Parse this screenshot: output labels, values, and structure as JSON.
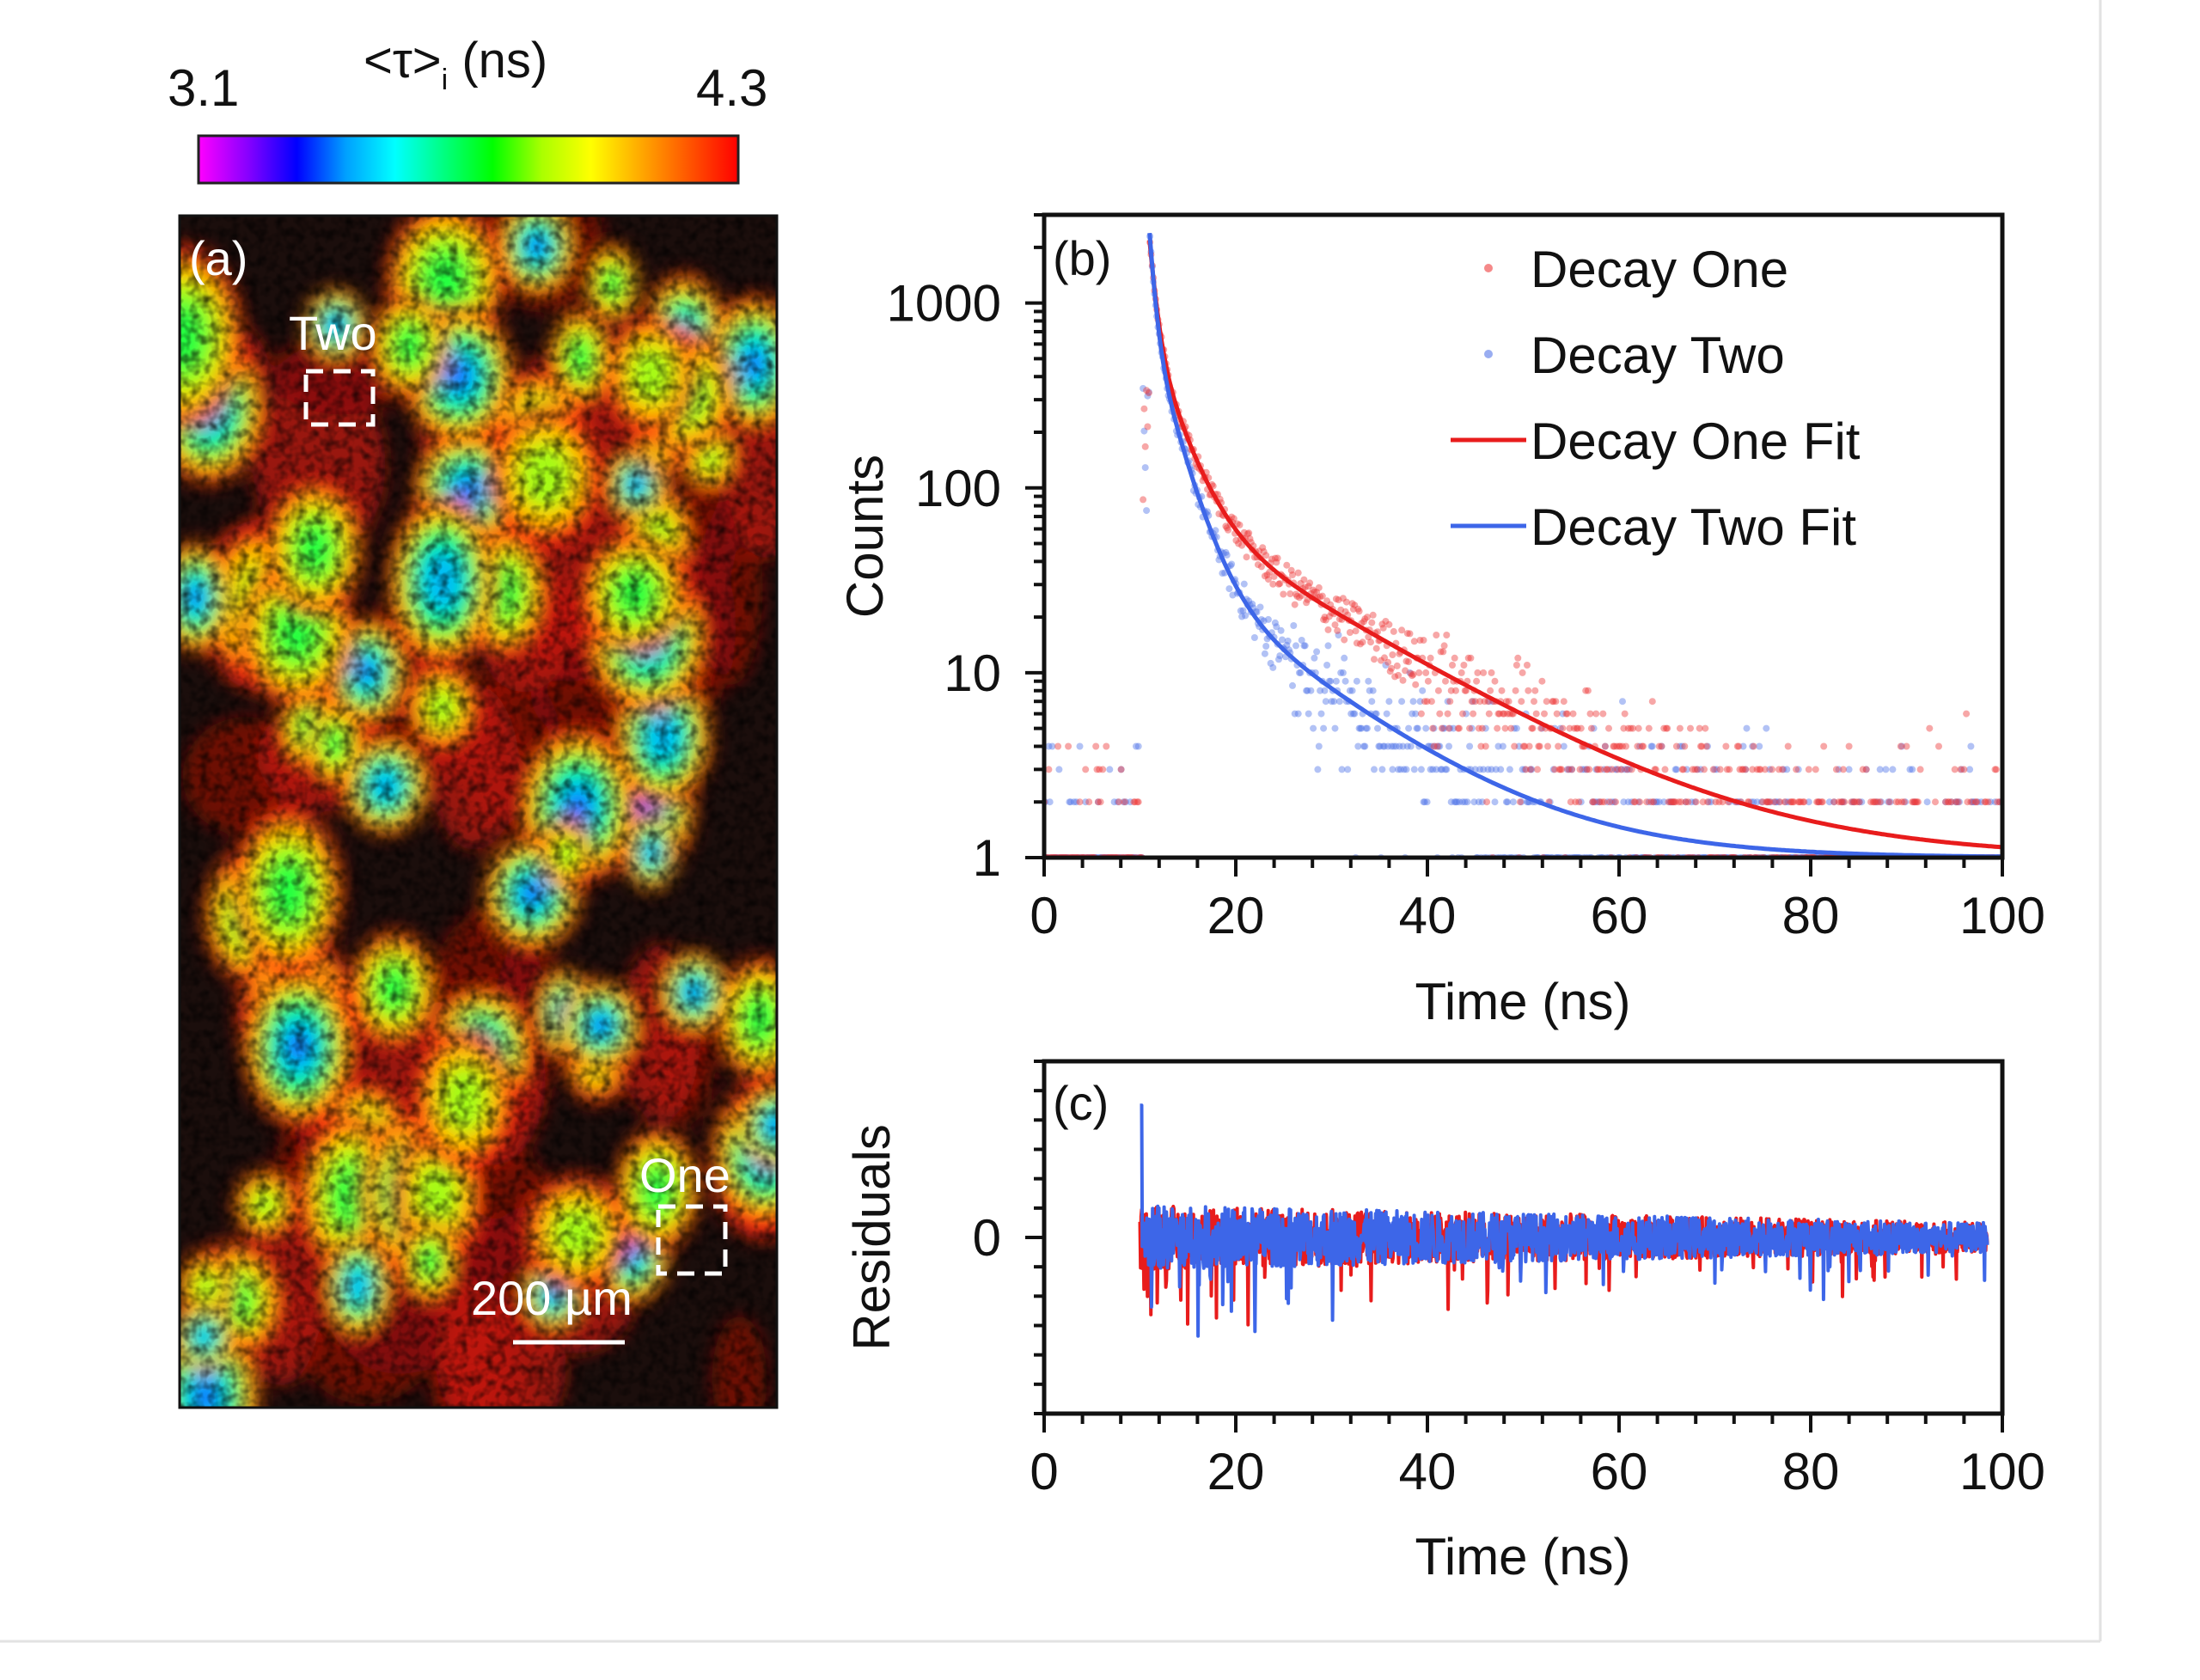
{
  "colorbar": {
    "min_label": "3.1",
    "max_label": "4.3",
    "title_prefix": "<τ>",
    "title_sub": "i",
    "title_suffix": " (ns)",
    "range": [
      3.1,
      4.3
    ],
    "stops": [
      "#ff00ff",
      "#8800ff",
      "#0000ff",
      "#00a0ff",
      "#00ffff",
      "#00ff80",
      "#00ff00",
      "#aaff00",
      "#ffff00",
      "#ffaa00",
      "#ff5500",
      "#ff0000"
    ]
  },
  "image_panel": {
    "panel_label": "(a)",
    "region_two_label": "Two",
    "region_one_label": "One",
    "scalebar_label": "200 µm"
  },
  "chart_data": [
    {
      "id": "b",
      "type": "scatter",
      "panel_label": "(b)",
      "xlabel": "Time (ns)",
      "ylabel": "Counts",
      "xlim": [
        0,
        100
      ],
      "ylim": [
        1,
        3000
      ],
      "yscale": "log",
      "xticks": [
        "0",
        "20",
        "40",
        "60",
        "80",
        "100"
      ],
      "yticks": [
        "1",
        "10",
        "100",
        "1000"
      ],
      "legend_position": "top-right",
      "series": [
        {
          "name": "Decay One",
          "kind": "points",
          "color": "#ee3b3b",
          "t0": 11,
          "amplitudes": [
            1500,
            600,
            80
          ],
          "lifetimes": [
            0.6,
            2.5,
            14
          ],
          "background": 1
        },
        {
          "name": "Decay Two",
          "kind": "points",
          "color": "#5577e8",
          "t0": 11,
          "amplitudes": [
            1700,
            650,
            40
          ],
          "lifetimes": [
            0.5,
            2.2,
            11
          ],
          "background": 1
        },
        {
          "name": "Decay One Fit",
          "kind": "line",
          "color": "#e81c1c",
          "t0": 11,
          "amplitudes": [
            1500,
            600,
            80
          ],
          "lifetimes": [
            0.6,
            2.5,
            14
          ],
          "background": 1
        },
        {
          "name": "Decay Two Fit",
          "kind": "line",
          "color": "#3d66e8",
          "t0": 11,
          "amplitudes": [
            1700,
            650,
            40
          ],
          "lifetimes": [
            0.5,
            2.2,
            11
          ],
          "background": 1
        }
      ]
    },
    {
      "id": "c",
      "type": "line",
      "panel_label": "(c)",
      "xlabel": "Time (ns)",
      "ylabel": "Residuals",
      "xlim": [
        0,
        100
      ],
      "ylim": [
        -6,
        6
      ],
      "xticks": [
        "0",
        "20",
        "40",
        "60",
        "80",
        "100"
      ],
      "yticks": [
        "0"
      ],
      "x_start": 10,
      "x_end": 98.5,
      "series": [
        {
          "name": "Decay One",
          "color": "#e81c1c"
        },
        {
          "name": "Decay Two",
          "color": "#3d66e8"
        }
      ]
    }
  ]
}
